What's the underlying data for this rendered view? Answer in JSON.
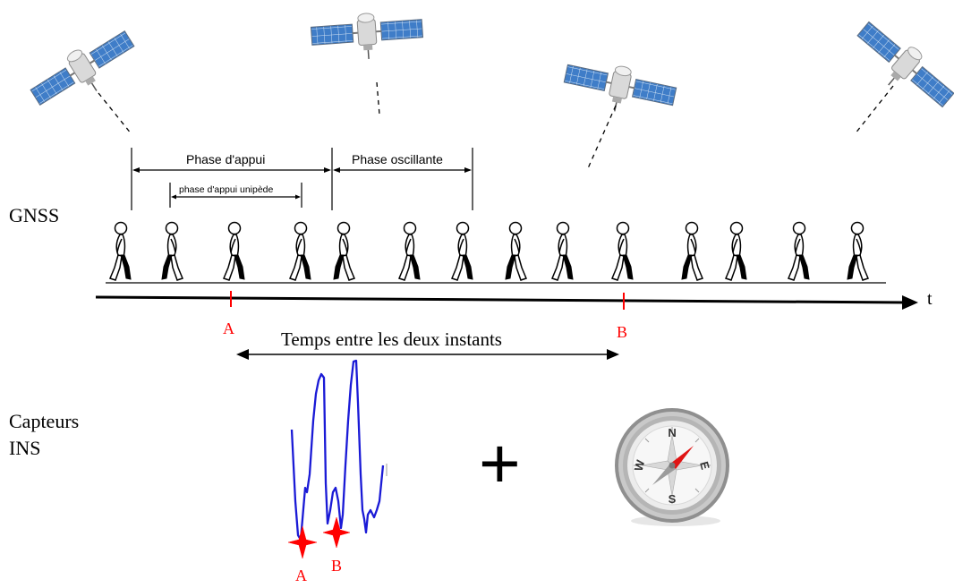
{
  "labels": {
    "gnss": "GNSS",
    "capteurs_line1": "Capteurs",
    "capteurs_line2": "INS",
    "time_axis": "t",
    "marker_a": "A",
    "marker_b": "B",
    "duration": "Temps entre les deux instants",
    "plus": "+",
    "signal_a": "A",
    "signal_b": "B"
  },
  "gait": {
    "stance_phase": "Phase d'appui",
    "swing_phase": "Phase oscillante",
    "single_support": "phase d'appui unipède",
    "walker_count": 14
  },
  "compass": {
    "north": "N",
    "south": "S",
    "east": "E",
    "west": "W"
  },
  "icons": [
    "satellite-icon",
    "walker-icon",
    "compass-icon"
  ],
  "colors": {
    "marker": "#ff0000",
    "signal": "#1a1ad6",
    "axis": "#000000",
    "satellite_panel": "#3a78c2"
  }
}
